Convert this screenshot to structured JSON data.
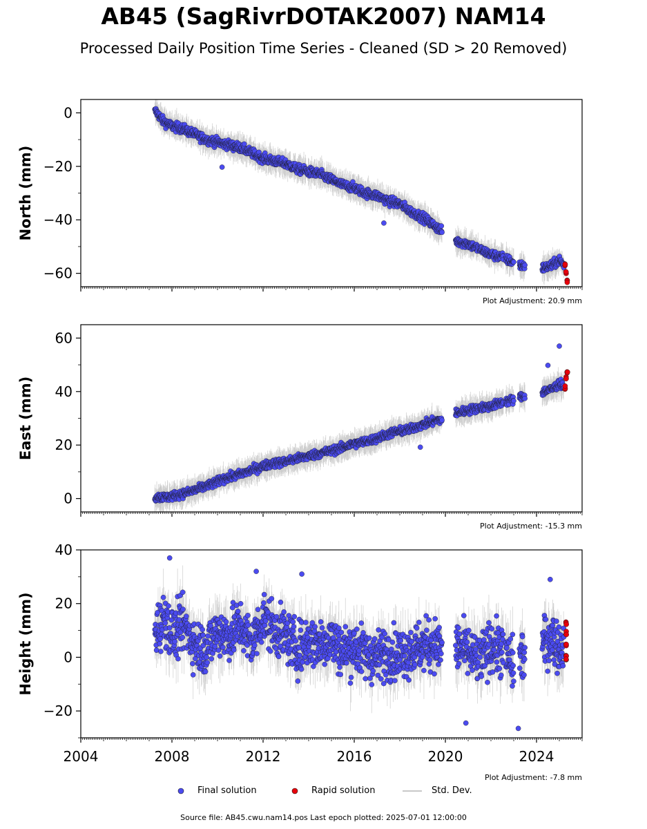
{
  "title": "AB45 (SagRivrDOTAK2007) NAM14",
  "subtitle": "Processed Daily Position Time Series - Cleaned (SD > 20 Removed)",
  "footer": "Source file: AB45.cwu.nam14.pos  Last epoch plotted: 2025-07-01 12:00:00",
  "legend": {
    "final": "Final solution",
    "rapid": "Rapid solution",
    "std": "Std. Dev."
  },
  "colors": {
    "final": "#4b4bf0",
    "rapid": "#e8000b",
    "std": "#c8c8c8",
    "marker_edge": "#1a1a1a"
  },
  "chart_data": [
    {
      "type": "scatter",
      "ylabel": "North (mm)",
      "xlim": [
        2004,
        2026
      ],
      "ylim": [
        -65,
        5
      ],
      "yticks": [
        0,
        -20,
        -40,
        -60
      ],
      "xticks": [
        2004,
        2008,
        2012,
        2016,
        2020,
        2024
      ],
      "show_xticklabels": false,
      "grid": false,
      "adjustment": "Plot Adjustment: 20.9 mm",
      "final_series": [
        [
          2007.3,
          0.5
        ],
        [
          2007.6,
          -3
        ],
        [
          2008.0,
          -5
        ],
        [
          2008.5,
          -6
        ],
        [
          2009.0,
          -8
        ],
        [
          2009.5,
          -10
        ],
        [
          2010.0,
          -11
        ],
        [
          2010.5,
          -12
        ],
        [
          2011.0,
          -13
        ],
        [
          2011.5,
          -15
        ],
        [
          2012.0,
          -17
        ],
        [
          2012.5,
          -18
        ],
        [
          2013.0,
          -19
        ],
        [
          2013.5,
          -21
        ],
        [
          2014.0,
          -22
        ],
        [
          2014.5,
          -23
        ],
        [
          2015.0,
          -25
        ],
        [
          2015.5,
          -27
        ],
        [
          2016.0,
          -28
        ],
        [
          2016.5,
          -30
        ],
        [
          2017.0,
          -31
        ],
        [
          2017.5,
          -33
        ],
        [
          2018.0,
          -34
        ],
        [
          2018.5,
          -37
        ],
        [
          2019.0,
          -39
        ],
        [
          2019.5,
          -42
        ],
        [
          2019.8,
          -44
        ],
        [
          2020.5,
          -48
        ],
        [
          2021.0,
          -49
        ],
        [
          2021.5,
          -51
        ],
        [
          2022.0,
          -53
        ],
        [
          2022.5,
          -54
        ],
        [
          2023.0,
          -56
        ],
        [
          2023.3,
          -57
        ],
        [
          2024.3,
          -58
        ],
        [
          2024.7,
          -57
        ],
        [
          2025.0,
          -55
        ],
        [
          2025.2,
          -57
        ]
      ],
      "rapid_series": [
        [
          2025.25,
          -57
        ],
        [
          2025.3,
          -60
        ],
        [
          2025.35,
          -63
        ]
      ],
      "outliers": [
        [
          2010.2,
          -20.3
        ],
        [
          2017.3,
          -41.2
        ]
      ]
    },
    {
      "type": "scatter",
      "ylabel": "East (mm)",
      "xlim": [
        2004,
        2026
      ],
      "ylim": [
        -5,
        65
      ],
      "yticks": [
        0,
        20,
        40,
        60
      ],
      "xticks": [
        2004,
        2008,
        2012,
        2016,
        2020,
        2024
      ],
      "show_xticklabels": false,
      "grid": false,
      "adjustment": "Plot Adjustment: -15.3 mm",
      "final_series": [
        [
          2007.3,
          0.5
        ],
        [
          2007.8,
          0.5
        ],
        [
          2008.3,
          1.5
        ],
        [
          2008.8,
          2.5
        ],
        [
          2009.3,
          4
        ],
        [
          2009.8,
          5.5
        ],
        [
          2010.3,
          7.5
        ],
        [
          2010.8,
          8.5
        ],
        [
          2011.3,
          10
        ],
        [
          2011.8,
          11.5
        ],
        [
          2012.3,
          13
        ],
        [
          2012.8,
          13.5
        ],
        [
          2013.3,
          14.5
        ],
        [
          2013.8,
          15.5
        ],
        [
          2014.3,
          16.5
        ],
        [
          2014.8,
          17.5
        ],
        [
          2015.3,
          18.5
        ],
        [
          2015.8,
          20
        ],
        [
          2016.3,
          21
        ],
        [
          2016.8,
          22
        ],
        [
          2017.3,
          23.5
        ],
        [
          2017.8,
          25
        ],
        [
          2018.3,
          25.5
        ],
        [
          2018.8,
          27
        ],
        [
          2019.3,
          28.5
        ],
        [
          2019.8,
          29.5
        ],
        [
          2020.5,
          32
        ],
        [
          2021.0,
          33
        ],
        [
          2021.5,
          34
        ],
        [
          2022.0,
          34.5
        ],
        [
          2022.5,
          36
        ],
        [
          2023.0,
          37
        ],
        [
          2023.3,
          38
        ],
        [
          2024.3,
          40
        ],
        [
          2024.7,
          41
        ],
        [
          2025.0,
          43
        ],
        [
          2025.2,
          42
        ]
      ],
      "rapid_series": [
        [
          2025.25,
          41.5
        ],
        [
          2025.3,
          45
        ],
        [
          2025.35,
          47
        ]
      ],
      "outliers": [
        [
          2018.9,
          19.2
        ],
        [
          2024.5,
          49.8
        ],
        [
          2025.0,
          57
        ]
      ]
    },
    {
      "type": "scatter",
      "ylabel": "Height (mm)",
      "xlim": [
        2004,
        2026
      ],
      "ylim": [
        -30,
        40
      ],
      "yticks": [
        40,
        20,
        0,
        -20
      ],
      "xticks": [
        2004,
        2008,
        2012,
        2016,
        2020,
        2024
      ],
      "show_xticklabels": true,
      "grid": false,
      "adjustment": "Plot Adjustment: -7.8 mm",
      "final_series": [
        [
          2007.3,
          10
        ],
        [
          2007.7,
          15
        ],
        [
          2008.0,
          8
        ],
        [
          2008.5,
          12
        ],
        [
          2009.0,
          5
        ],
        [
          2009.5,
          3
        ],
        [
          2010.0,
          10
        ],
        [
          2010.5,
          8
        ],
        [
          2011.0,
          12
        ],
        [
          2011.5,
          5
        ],
        [
          2012.0,
          15
        ],
        [
          2012.5,
          10
        ],
        [
          2013.0,
          8
        ],
        [
          2013.5,
          3
        ],
        [
          2014.0,
          6
        ],
        [
          2014.5,
          5
        ],
        [
          2015.0,
          7
        ],
        [
          2015.5,
          2
        ],
        [
          2016.0,
          4
        ],
        [
          2016.5,
          1
        ],
        [
          2017.0,
          0
        ],
        [
          2017.5,
          2
        ],
        [
          2018.0,
          1
        ],
        [
          2018.5,
          3
        ],
        [
          2019.0,
          4
        ],
        [
          2019.5,
          5
        ],
        [
          2019.8,
          3
        ],
        [
          2020.5,
          4
        ],
        [
          2021.0,
          2
        ],
        [
          2021.5,
          -2
        ],
        [
          2022.0,
          5
        ],
        [
          2022.5,
          2
        ],
        [
          2023.0,
          -3
        ],
        [
          2023.3,
          0
        ],
        [
          2024.3,
          5
        ],
        [
          2024.7,
          8
        ],
        [
          2025.0,
          3
        ],
        [
          2025.2,
          4
        ]
      ],
      "rapid_series": [
        [
          2025.3,
          13
        ],
        [
          2025.3,
          9
        ],
        [
          2025.3,
          5
        ],
        [
          2025.3,
          1
        ],
        [
          2025.3,
          -0.5
        ]
      ],
      "outliers": [
        [
          2007.9,
          37
        ],
        [
          2011.7,
          32
        ],
        [
          2013.7,
          31
        ],
        [
          2020.9,
          -24.5
        ],
        [
          2023.2,
          -26.5
        ],
        [
          2024.6,
          29
        ]
      ]
    }
  ]
}
